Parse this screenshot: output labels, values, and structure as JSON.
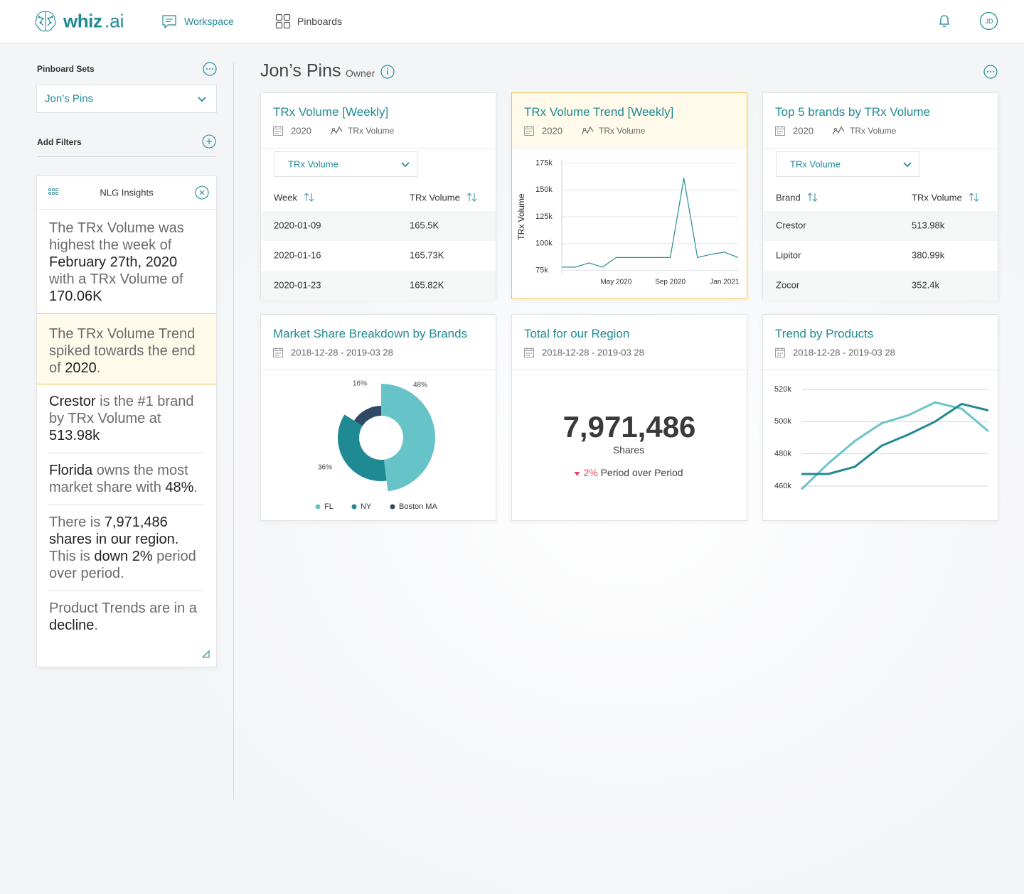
{
  "nav": {
    "logo": "whiz",
    "logo_suffix": ".ai",
    "items": [
      "Workspace",
      "Pinboards"
    ],
    "avatar": "JD"
  },
  "sidebar": {
    "pinboard_sets_label": "Pinboard Sets",
    "selected_set": "Jon’s Pins",
    "add_filters_label": "Add Filters",
    "insights_title": "NLG Insights",
    "insights": [
      {
        "highlight": false,
        "segments": [
          {
            "text": "The TRx Volume was highest the week of ",
            "bold": false
          },
          {
            "text": "February 27th, 2020",
            "bold": true
          },
          {
            "text": " with a TRx Volume of ",
            "bold": false
          },
          {
            "text": "170.06K",
            "bold": true
          }
        ]
      },
      {
        "highlight": true,
        "segments": [
          {
            "text": "The TRx Volume Trend spiked towards the end of ",
            "bold": false
          },
          {
            "text": "2020",
            "bold": true
          },
          {
            "text": ".",
            "bold": false
          }
        ]
      },
      {
        "highlight": false,
        "segments": [
          {
            "text": "Crestor",
            "bold": true
          },
          {
            "text": " is the #1 brand by TRx Volume at ",
            "bold": false
          },
          {
            "text": "513.98k",
            "bold": true
          }
        ]
      },
      {
        "highlight": false,
        "segments": [
          {
            "text": "Florida",
            "bold": true
          },
          {
            "text": " owns the most market share with ",
            "bold": false
          },
          {
            "text": "48%",
            "bold": true
          },
          {
            "text": ".",
            "bold": false
          }
        ]
      },
      {
        "highlight": false,
        "segments": [
          {
            "text": "There is ",
            "bold": false
          },
          {
            "text": "7,971,486 shares in our region.",
            "bold": true
          },
          {
            "text": " This is ",
            "bold": false
          },
          {
            "text": "down 2%",
            "bold": true
          },
          {
            "text": " period over period.",
            "bold": false
          }
        ]
      },
      {
        "highlight": false,
        "segments": [
          {
            "text": "Product Trends are in a ",
            "bold": false
          },
          {
            "text": "decline",
            "bold": true
          },
          {
            "text": ".",
            "bold": false
          }
        ]
      }
    ]
  },
  "page": {
    "title": "Jon’s Pins",
    "role": "Owner"
  },
  "tables": [
    {
      "title": "TRx Volume [Weekly]",
      "period": "2020",
      "measure": "TRx Volume",
      "dropdown": "TRx Volume",
      "columns": [
        "Week",
        "TRx Volume"
      ],
      "rows": [
        [
          "2020-01-09",
          "165.5K"
        ],
        [
          "2020-01-16",
          "165.73K"
        ],
        [
          "2020-01-23",
          "165.82K"
        ]
      ]
    },
    {
      "title": "Top 5 brands by TRx Volume",
      "period": "2020",
      "measure": "TRx Volume",
      "dropdown": "TRx Volume",
      "columns": [
        "Brand",
        "TRx Volume"
      ],
      "rows": [
        [
          "Crestor",
          "513.98k"
        ],
        [
          "Lipitor",
          "380.99k"
        ],
        [
          "Zocor",
          "352.4k"
        ]
      ]
    }
  ],
  "kpi": {
    "title": "Total for our Region",
    "period": "2018-12-28 - 2019-03 28",
    "value": "7,971,486",
    "unit": "Shares",
    "change": "2%",
    "change_label": "Period over Period",
    "change_color": "#e0475b"
  },
  "chart_data": [
    {
      "type": "line",
      "title": "TRx Volume Trend [Weekly]",
      "period": "2020",
      "measure": "TRx Volume",
      "highlight": true,
      "ylabel": "TRx Volume",
      "x": [
        "2020-01",
        "2020-02",
        "2020-03",
        "2020-04",
        "2020-05",
        "2020-06",
        "2020-07",
        "2020-08",
        "2020-09",
        "2020-10",
        "2020-11",
        "2020-12",
        "2021-01",
        "2021-02"
      ],
      "values": [
        78000,
        78000,
        82000,
        78000,
        87000,
        87000,
        87000,
        87000,
        87000,
        161000,
        87000,
        90000,
        92000,
        87000
      ],
      "color": "#2a8b95",
      "xlim": [
        "2020-01",
        "2021-02"
      ],
      "xticks": [
        {
          "value": "2020-05",
          "label": "May 2020"
        },
        {
          "value": "2020-09",
          "label": "Sep 2020"
        },
        {
          "value": "2021-01",
          "label": "Jan 2021"
        }
      ],
      "ylim": [
        72000,
        178000
      ],
      "yticks": [
        {
          "value": 75000,
          "label": "75k"
        },
        {
          "value": 100000,
          "label": "100k"
        },
        {
          "value": 125000,
          "label": "125k"
        },
        {
          "value": 150000,
          "label": "150k"
        },
        {
          "value": 175000,
          "label": "175k"
        }
      ],
      "grid": true
    },
    {
      "type": "donut",
      "title": "Market Share Breakdown by Brands",
      "period": "2018-12-28 - 2019-03 28",
      "categories": [
        "FL",
        "NY",
        "Boston MA"
      ],
      "values": [
        48,
        36,
        16
      ],
      "value_labels": [
        "48%",
        "36%",
        "16%"
      ],
      "colors": [
        "#66c3c8",
        "#1f8a94",
        "#2e4a66"
      ]
    },
    {
      "type": "line",
      "title": "Trend by Products",
      "period": "2018-12-28 - 2019-03 28",
      "series": [
        {
          "color": "#6cc4c9",
          "values": [
            458000,
            474000,
            488000,
            499000,
            504000,
            512000,
            508000,
            494000
          ]
        },
        {
          "color": "#238892",
          "values": [
            467500,
            467500,
            472000,
            485000,
            492000,
            500000,
            511000,
            507000
          ]
        }
      ],
      "ylim": [
        455000,
        525000
      ],
      "yticks": [
        {
          "value": 460000,
          "label": "460k"
        },
        {
          "value": 480000,
          "label": "480k"
        },
        {
          "value": 500000,
          "label": "500k"
        },
        {
          "value": 520000,
          "label": "520k"
        }
      ],
      "grid": true
    }
  ]
}
